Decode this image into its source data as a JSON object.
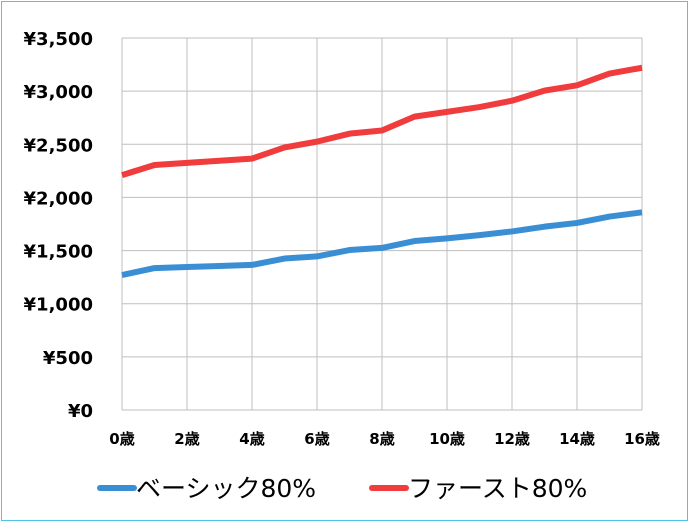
{
  "chart_data": {
    "type": "line",
    "x": [
      0,
      1,
      2,
      3,
      4,
      5,
      6,
      7,
      8,
      9,
      10,
      11,
      12,
      13,
      14,
      15,
      16
    ],
    "x_tick_labels": [
      "0歳",
      "2歳",
      "4歳",
      "6歳",
      "8歳",
      "10歳",
      "12歳",
      "14歳",
      "16歳"
    ],
    "y_tick_labels": [
      "¥0",
      "¥500",
      "¥1,000",
      "¥1,500",
      "¥2,000",
      "¥2,500",
      "¥3,000",
      "¥3,500"
    ],
    "ylim": [
      0,
      3500
    ],
    "grid": true,
    "legend_position": "bottom",
    "series": [
      {
        "name": "ベーシック80%",
        "color": "#3a8fd4",
        "values": [
          1270,
          1335,
          1345,
          1355,
          1365,
          1425,
          1445,
          1505,
          1525,
          1590,
          1615,
          1645,
          1680,
          1725,
          1760,
          1820,
          1860
        ]
      },
      {
        "name": "ファースト80%",
        "color": "#f03c3c",
        "values": [
          2210,
          2305,
          2325,
          2345,
          2365,
          2470,
          2525,
          2600,
          2630,
          2760,
          2805,
          2850,
          2910,
          3005,
          3055,
          3165,
          3220
        ]
      }
    ]
  }
}
